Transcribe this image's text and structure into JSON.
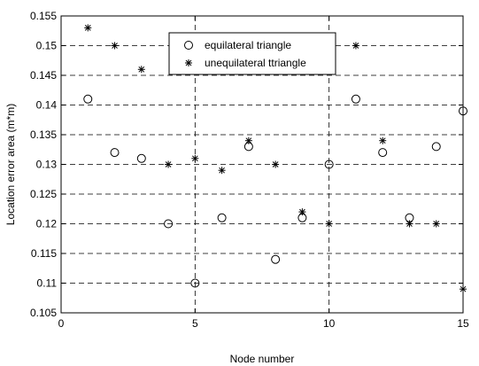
{
  "chart_data": {
    "type": "scatter",
    "xlabel": "Node number",
    "ylabel": "Location error area (m*m)",
    "xlim": [
      0,
      15
    ],
    "ylim": [
      0.105,
      0.155
    ],
    "xticks": [
      0,
      5,
      10,
      15
    ],
    "yticks": [
      0.105,
      0.11,
      0.115,
      0.12,
      0.125,
      0.13,
      0.135,
      0.14,
      0.145,
      0.15,
      0.155
    ],
    "xtick_labels": [
      "0",
      "5",
      "10",
      "15"
    ],
    "ytick_labels": [
      "0.105",
      "0.11",
      "0.115",
      "0.12",
      "0.125",
      "0.13",
      "0.135",
      "0.14",
      "0.145",
      "0.15",
      "0.155"
    ],
    "grid": true,
    "legend_position": "top-center",
    "series": [
      {
        "name": "equilateral triangle",
        "marker": "circle",
        "x": [
          1,
          2,
          3,
          4,
          5,
          6,
          7,
          8,
          9,
          10,
          11,
          12,
          13,
          14,
          15
        ],
        "y": [
          0.141,
          0.132,
          0.131,
          0.12,
          0.11,
          0.121,
          0.133,
          0.114,
          0.121,
          0.13,
          0.141,
          0.132,
          0.121,
          0.133,
          0.139
        ]
      },
      {
        "name": "unequilateral ttriangle",
        "marker": "asterisk",
        "x": [
          1,
          2,
          3,
          4,
          5,
          6,
          7,
          8,
          9,
          10,
          11,
          12,
          13,
          14,
          15
        ],
        "y": [
          0.153,
          0.15,
          0.146,
          0.13,
          0.131,
          0.129,
          0.134,
          0.13,
          0.122,
          0.12,
          0.15,
          0.134,
          0.12,
          0.12,
          0.109
        ]
      }
    ]
  }
}
